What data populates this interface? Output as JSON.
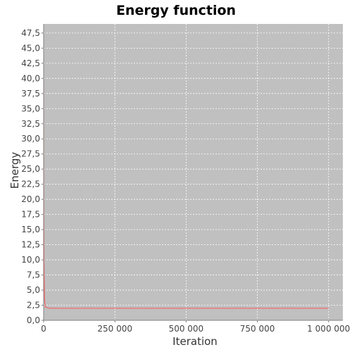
{
  "chart_data": {
    "type": "line",
    "title": "Energy function",
    "xlabel": "Iteration",
    "ylabel": "Energy",
    "xlim": [
      0,
      1050000
    ],
    "ylim": [
      0,
      49
    ],
    "grid": true,
    "x_ticks": [
      0,
      250000,
      500000,
      750000,
      1000000
    ],
    "x_tick_labels": [
      "0",
      "250 000",
      "500 000",
      "750 000",
      "1 000 000"
    ],
    "y_ticks": [
      0,
      2.5,
      5,
      7.5,
      10,
      12.5,
      15,
      17.5,
      20,
      22.5,
      25,
      27.5,
      30,
      32.5,
      35,
      37.5,
      40,
      42.5,
      45,
      47.5
    ],
    "y_tick_labels": [
      "0,0",
      "2,5",
      "5,0",
      "7,5",
      "10,0",
      "12,5",
      "15,0",
      "17,5",
      "20,0",
      "22,5",
      "25,0",
      "27,5",
      "30,0",
      "32,5",
      "35,0",
      "37,5",
      "40,0",
      "42,5",
      "45,0",
      "47,5"
    ],
    "colors": {
      "plot_background": "#c0c0c0",
      "gridline": "#ffffff",
      "series_line": "#ff5555"
    },
    "series": [
      {
        "values": [
          {
            "x": 0,
            "y": 48
          },
          {
            "x": 500,
            "y": 19
          },
          {
            "x": 1500,
            "y": 9
          },
          {
            "x": 3000,
            "y": 3.5
          },
          {
            "x": 6000,
            "y": 2.2
          },
          {
            "x": 20000,
            "y": 2.0
          },
          {
            "x": 1000000,
            "y": 2.0
          }
        ]
      }
    ]
  }
}
